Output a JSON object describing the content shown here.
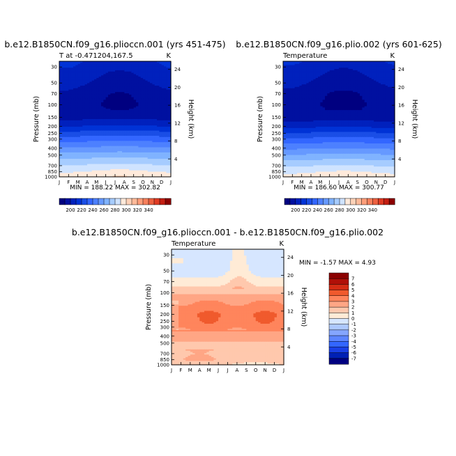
{
  "chart_data": [
    {
      "type": "heatmap",
      "title": "b.e12.B1850CN.f09_g16.plioccn.001 (yrs 451-475)",
      "subtitle_left": "T at -0.471204,167.5",
      "subtitle_right": "K",
      "xlabel": "",
      "ylabel": "Pressure (mb)",
      "ylabel_right": "Height (km)",
      "x_ticks": [
        "J",
        "F",
        "M",
        "A",
        "M",
        "J",
        "J",
        "A",
        "S",
        "O",
        "N",
        "D",
        "J"
      ],
      "y_ticks": [
        30,
        50,
        70,
        100,
        150,
        200,
        250,
        300,
        400,
        500,
        700,
        850,
        1000
      ],
      "height_ticks": [
        4,
        8,
        12,
        16,
        20,
        24
      ],
      "yscale": "log",
      "ylim": [
        1000,
        25
      ],
      "stats": "MIN = 188.22 MAX = 302.82",
      "colorbar": {
        "orientation": "horizontal",
        "labels": [
          "200",
          "220",
          "240",
          "260",
          "280",
          "300",
          "320",
          "340"
        ]
      },
      "profile": {
        "p": [
          25,
          30,
          50,
          70,
          100,
          150,
          200,
          250,
          300,
          400,
          500,
          700,
          850,
          1000
        ],
        "t": [
          208,
          206,
          199,
          194,
          192,
          197,
          211,
          225,
          236,
          252,
          265,
          282,
          291,
          299
        ]
      }
    },
    {
      "type": "heatmap",
      "title": "b.e12.B1850CN.f09_g16.plio.002 (yrs 601-625)",
      "subtitle_left": "Temperature",
      "subtitle_right": "K",
      "xlabel": "",
      "ylabel": "Pressure (mb)",
      "ylabel_right": "Height (km)",
      "x_ticks": [
        "J",
        "F",
        "M",
        "A",
        "M",
        "J",
        "J",
        "A",
        "S",
        "O",
        "N",
        "D",
        "J"
      ],
      "y_ticks": [
        30,
        50,
        70,
        100,
        150,
        200,
        250,
        300,
        400,
        500,
        700,
        850,
        1000
      ],
      "height_ticks": [
        4,
        8,
        12,
        16,
        20,
        24
      ],
      "yscale": "log",
      "ylim": [
        1000,
        25
      ],
      "stats": "MIN = 186.60 MAX = 300.77",
      "colorbar": {
        "orientation": "horizontal",
        "labels": [
          "200",
          "220",
          "240",
          "260",
          "280",
          "300",
          "320",
          "340"
        ]
      },
      "profile": {
        "p": [
          25,
          30,
          50,
          70,
          100,
          150,
          200,
          250,
          300,
          400,
          500,
          700,
          850,
          1000
        ],
        "t": [
          207,
          205,
          198,
          193,
          191,
          195,
          208,
          222,
          233,
          249,
          262,
          280,
          289,
          297
        ]
      }
    },
    {
      "type": "heatmap",
      "title": "b.e12.B1850CN.f09_g16.plioccn.001 - b.e12.B1850CN.f09_g16.plio.002",
      "subtitle_left": "Temperature",
      "subtitle_right": "K",
      "xlabel": "",
      "ylabel": "Pressure (mb)",
      "ylabel_right": "Height (km)",
      "x_ticks": [
        "J",
        "F",
        "M",
        "A",
        "M",
        "J",
        "J",
        "A",
        "S",
        "O",
        "N",
        "D",
        "J"
      ],
      "y_ticks": [
        30,
        50,
        70,
        100,
        150,
        200,
        250,
        300,
        400,
        500,
        700,
        850,
        1000
      ],
      "height_ticks": [
        4,
        8,
        12,
        16,
        20,
        24
      ],
      "yscale": "log",
      "ylim": [
        1000,
        25
      ],
      "stats": "MIN = -1.57 MAX = 4.93",
      "colorbar": {
        "orientation": "vertical",
        "labels": [
          "7",
          "6",
          "5",
          "4",
          "3",
          "2",
          "1",
          "0",
          "-1",
          "-2",
          "-3",
          "-4",
          "-5",
          "-6",
          "-7"
        ]
      },
      "profile": {
        "p": [
          25,
          30,
          50,
          70,
          100,
          150,
          200,
          250,
          300,
          400,
          500,
          700,
          850,
          1000
        ],
        "t": [
          -0.6,
          -0.6,
          -0.3,
          0.6,
          1.9,
          3.3,
          3.9,
          3.8,
          3.4,
          2.6,
          1.9,
          1.6,
          1.8,
          1.0
        ]
      }
    }
  ]
}
